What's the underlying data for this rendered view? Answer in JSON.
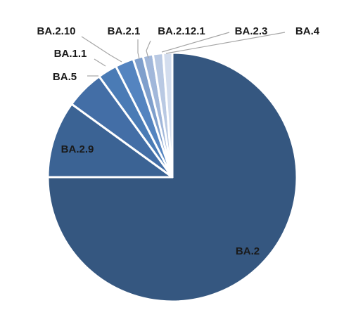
{
  "chart_data": {
    "type": "pie",
    "title": "",
    "slices": [
      {
        "label": "BA.2",
        "value": 75.0,
        "color": "#355780"
      },
      {
        "label": "BA.2.9",
        "value": 10.0,
        "color": "#3b6394"
      },
      {
        "label": "BA.5",
        "value": 5.0,
        "color": "#436ea6"
      },
      {
        "label": "BA.1.1",
        "value": 2.5,
        "color": "#4a7bb5"
      },
      {
        "label": "BA.2.10",
        "value": 2.4,
        "color": "#5484c0"
      },
      {
        "label": "BA.2.1",
        "value": 1.3,
        "color": "#7f9fcc"
      },
      {
        "label": "BA.2.12.1",
        "value": 1.3,
        "color": "#a1b7da"
      },
      {
        "label": "BA.2.3",
        "value": 1.3,
        "color": "#b9c9e3"
      },
      {
        "label": "BA.4",
        "value": 1.2,
        "color": "#d3ddee"
      }
    ]
  }
}
